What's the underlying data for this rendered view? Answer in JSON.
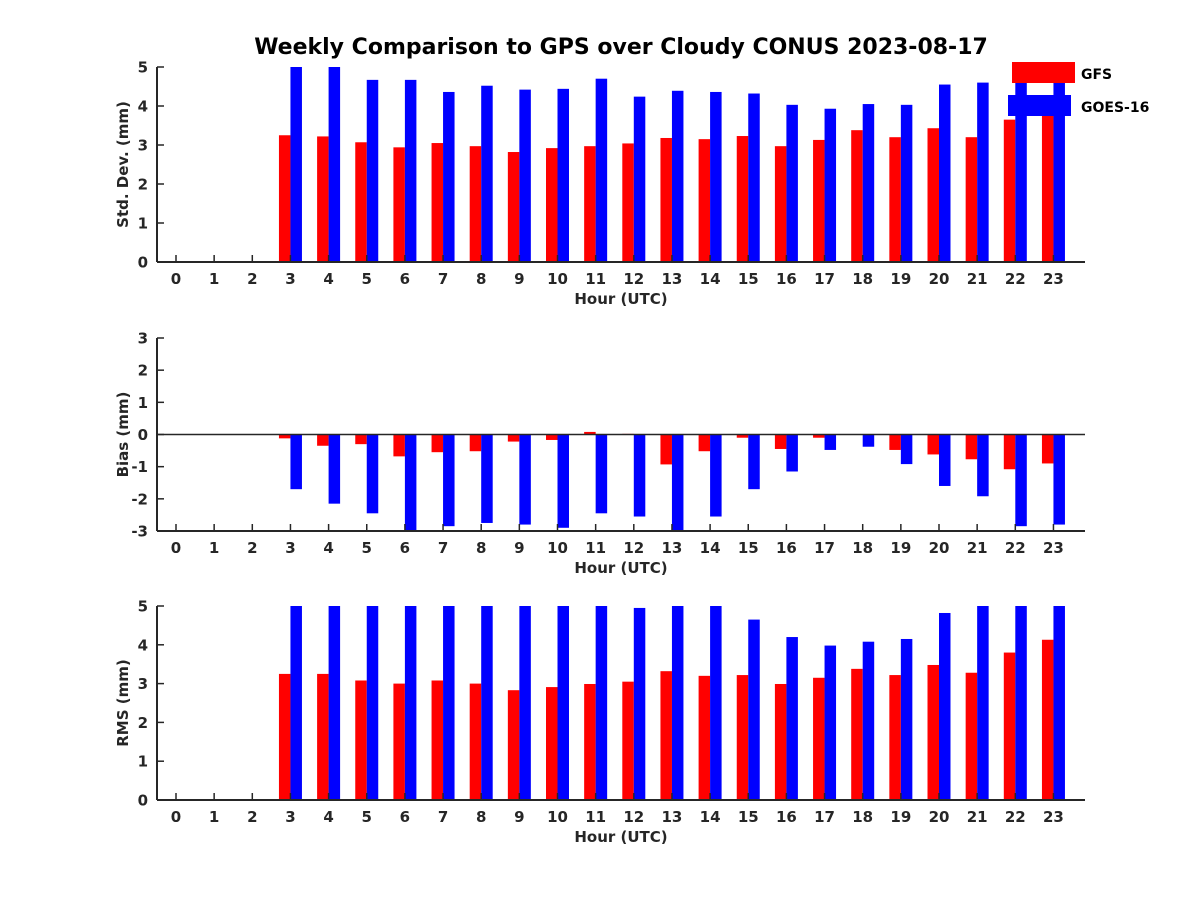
{
  "chart_data": {
    "type": "bar",
    "title": "Weekly Comparison to GPS over Cloudy CONUS 2023-08-17",
    "legend": {
      "placement": "top-right",
      "entries": [
        {
          "name": "GFS",
          "color": "#ff0000"
        },
        {
          "name": "GOES-16",
          "color": "#0000ff"
        }
      ]
    },
    "categories": [
      "0",
      "1",
      "2",
      "3",
      "4",
      "5",
      "6",
      "7",
      "8",
      "9",
      "10",
      "11",
      "12",
      "13",
      "14",
      "15",
      "16",
      "17",
      "18",
      "19",
      "20",
      "21",
      "22",
      "23"
    ],
    "panels": [
      {
        "id": "std",
        "ylabel": "Std. Dev. (mm)",
        "xlabel": "Hour (UTC)",
        "ylim": [
          0,
          5
        ],
        "yticks": [
          "0",
          "1",
          "2",
          "3",
          "4",
          "5"
        ],
        "series": [
          {
            "name": "GFS",
            "color": "#ff0000",
            "values": [
              null,
              null,
              null,
              3.25,
              3.22,
              3.07,
              2.94,
              3.05,
              2.97,
              2.82,
              2.92,
              2.97,
              3.04,
              3.18,
              3.15,
              3.23,
              2.97,
              3.13,
              3.38,
              3.2,
              3.43,
              3.2,
              3.65,
              3.95
            ]
          },
          {
            "name": "GOES-16",
            "color": "#0000ff",
            "values": [
              null,
              null,
              null,
              5.0,
              5.0,
              4.67,
              4.67,
              4.36,
              4.52,
              4.42,
              4.44,
              4.7,
              4.24,
              4.39,
              4.36,
              4.32,
              4.03,
              3.93,
              4.05,
              4.03,
              4.55,
              4.6,
              4.6,
              4.6
            ]
          }
        ]
      },
      {
        "id": "bias",
        "ylabel": "Bias (mm)",
        "xlabel": "Hour (UTC)",
        "ylim": [
          -3,
          3
        ],
        "yticks": [
          "-3",
          "-2",
          "-1",
          "0",
          "1",
          "2",
          "3"
        ],
        "series": [
          {
            "name": "GFS",
            "color": "#ff0000",
            "values": [
              null,
              null,
              null,
              -0.12,
              -0.35,
              -0.3,
              -0.68,
              -0.55,
              -0.52,
              -0.22,
              -0.17,
              0.08,
              0.02,
              -0.93,
              -0.52,
              -0.1,
              -0.45,
              -0.1,
              0.0,
              -0.48,
              -0.62,
              -0.77,
              -1.08,
              -0.9
            ]
          },
          {
            "name": "GOES-16",
            "color": "#0000ff",
            "values": [
              null,
              null,
              null,
              -1.7,
              -2.15,
              -2.45,
              -3.0,
              -2.85,
              -2.75,
              -2.8,
              -2.9,
              -2.45,
              -2.55,
              -3.0,
              -2.55,
              -1.7,
              -1.15,
              -0.48,
              -0.38,
              -0.92,
              -1.6,
              -1.92,
              -2.85,
              -2.8
            ]
          }
        ]
      },
      {
        "id": "rms",
        "ylabel": "RMS (mm)",
        "xlabel": "Hour (UTC)",
        "ylim": [
          0,
          5
        ],
        "yticks": [
          "0",
          "1",
          "2",
          "3",
          "4",
          "5"
        ],
        "series": [
          {
            "name": "GFS",
            "color": "#ff0000",
            "values": [
              null,
              null,
              null,
              3.25,
              3.25,
              3.08,
              3.0,
              3.08,
              3.0,
              2.83,
              2.91,
              2.99,
              3.05,
              3.32,
              3.2,
              3.22,
              2.99,
              3.15,
              3.38,
              3.22,
              3.48,
              3.28,
              3.8,
              4.13
            ]
          },
          {
            "name": "GOES-16",
            "color": "#0000ff",
            "values": [
              null,
              null,
              null,
              5.0,
              5.0,
              5.0,
              5.0,
              5.0,
              5.0,
              5.0,
              5.0,
              5.0,
              4.95,
              5.0,
              5.0,
              4.65,
              4.2,
              3.98,
              4.08,
              4.15,
              4.82,
              5.0,
              5.0,
              5.0
            ]
          }
        ]
      }
    ]
  }
}
